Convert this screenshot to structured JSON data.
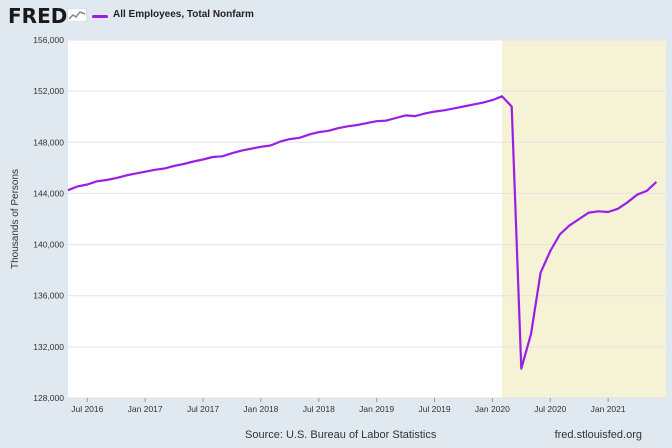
{
  "header": {
    "logo_text": "FRED",
    "legend_label": "All Employees, Total Nonfarm",
    "series_color": "#9b1ee6",
    "logo_icon": "fred-graph-icon"
  },
  "footer": {
    "source": "Source: U.S. Bureau of Labor Statistics",
    "url": "fred.stlouisfed.org"
  },
  "chart_data": {
    "type": "line",
    "title": "",
    "xlabel": "",
    "ylabel": "Thousands of Persons",
    "x_start": "2016-05",
    "x_end": "2021-07",
    "ylim": [
      128000,
      156000
    ],
    "yticks": [
      128000,
      132000,
      136000,
      140000,
      144000,
      148000,
      152000,
      156000
    ],
    "ytick_labels": [
      "128,000",
      "132,000",
      "136,000",
      "140,000",
      "144,000",
      "148,000",
      "152,000",
      "156,000"
    ],
    "xticks": [
      "2016-07",
      "2017-01",
      "2017-07",
      "2018-01",
      "2018-07",
      "2019-01",
      "2019-07",
      "2020-01",
      "2020-07",
      "2021-01"
    ],
    "xtick_labels": [
      "Jul 2016",
      "Jan 2017",
      "Jul 2017",
      "Jan 2018",
      "Jul 2018",
      "Jan 2019",
      "Jul 2019",
      "Jan 2020",
      "Jul 2020",
      "Jan 2021"
    ],
    "grid": true,
    "legend": "top-left",
    "recession": {
      "start": "2020-02",
      "end": "2021-07",
      "color": "#f5f2d5"
    },
    "series": [
      {
        "name": "All Employees, Total Nonfarm",
        "color": "#9b1ee6",
        "x": [
          "2016-05",
          "2016-06",
          "2016-07",
          "2016-08",
          "2016-09",
          "2016-10",
          "2016-11",
          "2016-12",
          "2017-01",
          "2017-02",
          "2017-03",
          "2017-04",
          "2017-05",
          "2017-06",
          "2017-07",
          "2017-08",
          "2017-09",
          "2017-10",
          "2017-11",
          "2017-12",
          "2018-01",
          "2018-02",
          "2018-03",
          "2018-04",
          "2018-05",
          "2018-06",
          "2018-07",
          "2018-08",
          "2018-09",
          "2018-10",
          "2018-11",
          "2018-12",
          "2019-01",
          "2019-02",
          "2019-03",
          "2019-04",
          "2019-05",
          "2019-06",
          "2019-07",
          "2019-08",
          "2019-09",
          "2019-10",
          "2019-11",
          "2019-12",
          "2020-01",
          "2020-02",
          "2020-03",
          "2020-04",
          "2020-05",
          "2020-06",
          "2020-07",
          "2020-08",
          "2020-09",
          "2020-10",
          "2020-11",
          "2020-12",
          "2021-01",
          "2021-02",
          "2021-03",
          "2021-04",
          "2021-05",
          "2021-06"
        ],
        "values": [
          144250,
          144550,
          144700,
          144950,
          145050,
          145200,
          145400,
          145550,
          145700,
          145850,
          145950,
          146150,
          146300,
          146500,
          146650,
          146850,
          146900,
          147150,
          147350,
          147500,
          147650,
          147750,
          148050,
          148250,
          148350,
          148600,
          148800,
          148900,
          149100,
          149250,
          149350,
          149500,
          149650,
          149700,
          149900,
          150100,
          150050,
          150250,
          150400,
          150500,
          150650,
          150800,
          150950,
          151100,
          151300,
          151600,
          150800,
          130300,
          133000,
          137800,
          139500,
          140800,
          141500,
          142000,
          142500,
          142600,
          142550,
          142800,
          143300,
          143900,
          144200,
          144900
        ]
      }
    ]
  }
}
